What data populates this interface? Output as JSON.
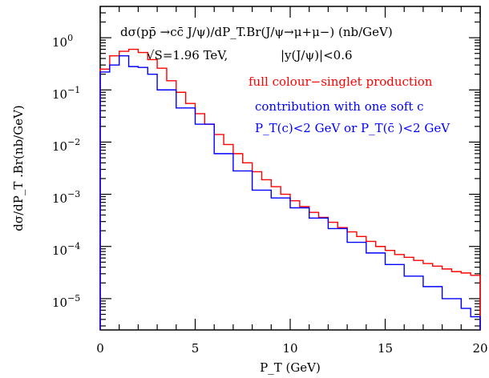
{
  "chart_data": {
    "type": "line",
    "step": true,
    "title_line1": "dσ(pp̄ →cc̄ J/ψ)/dP_T.Br(J/ψ→μ+μ−) (nb/GeV)",
    "title_line2_energy": "√S=1.96 TeV,",
    "title_line2_rapidity": "|y(J/ψ)|<0.6",
    "legend_lines": [
      {
        "text": "full colour−singlet production",
        "color": "#ff0000"
      },
      {
        "text": "contribution with one soft c",
        "color": "#0000ff"
      },
      {
        "text": "P_T(c)<2 GeV or P_T(c̄ )<2 GeV",
        "color": "#0000ff"
      }
    ],
    "xlabel": "P_T  (GeV)",
    "ylabel": "dσ/dP_T .Br(nb/GeV)",
    "xlim": [
      0,
      20
    ],
    "ylim_log10": [
      -5.6,
      0.6
    ],
    "yscale": "log",
    "x_ticks": [
      "0",
      "5",
      "10",
      "15",
      "20"
    ],
    "y_ticks": [
      {
        "base": "10",
        "exp": "0"
      },
      {
        "base": "10",
        "exp": "−1"
      },
      {
        "base": "10",
        "exp": "−2"
      },
      {
        "base": "10",
        "exp": "−3"
      },
      {
        "base": "10",
        "exp": "−4"
      },
      {
        "base": "10",
        "exp": "−5"
      }
    ],
    "bin_edges": [
      0,
      0.5,
      1,
      1.5,
      2,
      2.5,
      3,
      3.5,
      4,
      4.5,
      5,
      5.5,
      6,
      6.5,
      7,
      7.5,
      8,
      8.5,
      9,
      9.5,
      10,
      10.5,
      11,
      11.5,
      12,
      12.5,
      13,
      13.5,
      14,
      14.5,
      15,
      15.5,
      16,
      16.5,
      17,
      17.5,
      18,
      18.5,
      19,
      19.5,
      20
    ],
    "series": [
      {
        "name": "full colour−singlet production",
        "color": "#ff0000",
        "values": [
          0.25,
          0.45,
          0.55,
          0.6,
          0.52,
          0.38,
          0.26,
          0.15,
          0.09,
          0.055,
          0.035,
          0.022,
          0.014,
          0.009,
          0.006,
          0.004,
          0.0027,
          0.0019,
          0.0014,
          0.001,
          0.00075,
          0.00058,
          0.00045,
          0.00036,
          0.00029,
          0.00023,
          0.00019,
          0.000155,
          0.000125,
          0.0001,
          8.4e-05,
          7e-05,
          6.2e-05,
          5.4e-05,
          4.7e-05,
          4.2e-05,
          3.7e-05,
          3.3e-05,
          3.1e-05,
          2.8e-05
        ]
      },
      {
        "name": "contribution with one soft c",
        "color": "#0000ff",
        "values": [
          0.22,
          0.3,
          0.45,
          0.28,
          0.27,
          0.2,
          0.1,
          0.1,
          0.045,
          0.045,
          0.022,
          0.022,
          0.006,
          0.006,
          0.0028,
          0.0028,
          0.0012,
          0.0012,
          0.00085,
          0.00085,
          0.00055,
          0.00055,
          0.00035,
          0.00035,
          0.00022,
          0.00022,
          0.00012,
          0.00012,
          7.5e-05,
          7.5e-05,
          4.5e-05,
          4.5e-05,
          2.7e-05,
          2.7e-05,
          1.7e-05,
          1.7e-05,
          1e-05,
          1e-05,
          6.5e-06,
          4.5e-06
        ]
      }
    ]
  }
}
